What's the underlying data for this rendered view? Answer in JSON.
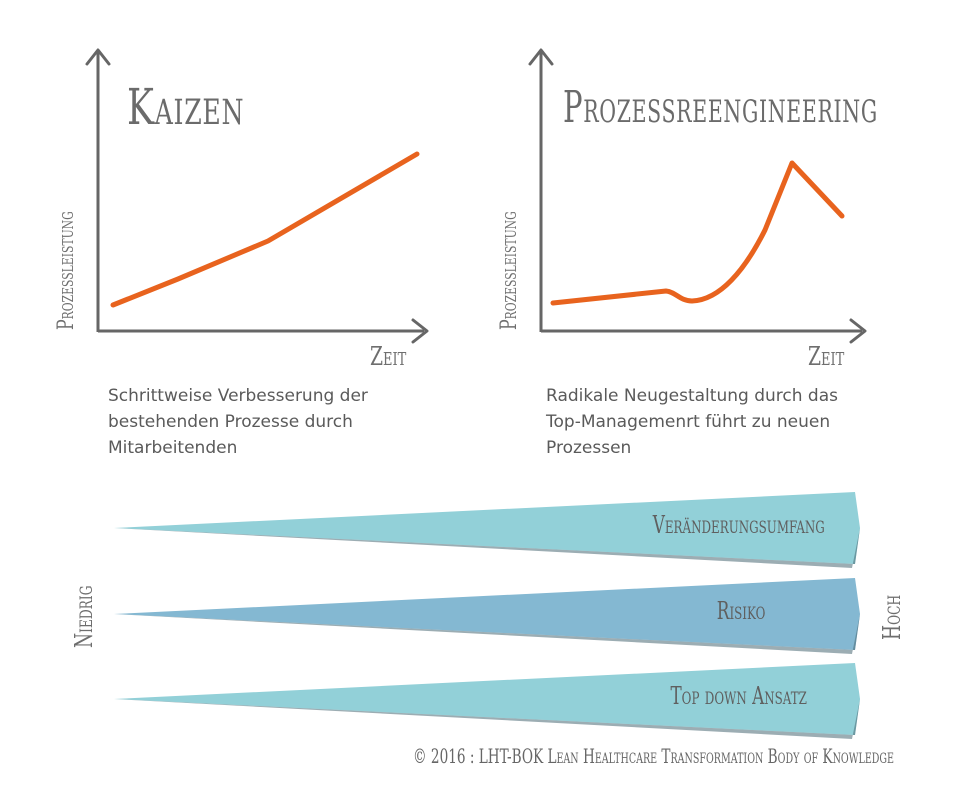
{
  "charts": [
    {
      "title": "Kaizen",
      "ylabel": "Prozessleistung",
      "xlabel": "Zeit",
      "description": "Schrittweise Verbesserung der\nbestehenden Prozesse durch\nMitarbeitenden",
      "line_color": "#e8631e"
    },
    {
      "title": "Prozessreengineering",
      "ylabel": "Prozessleistung",
      "xlabel": "Zeit",
      "description": "Radikale Neugestaltung durch das\nTop-Managemenrt führt zu neuen\nProzessen",
      "line_color": "#e8631e"
    }
  ],
  "scale": {
    "low_label": "Niedrig",
    "high_label": "Hoch"
  },
  "wedges": [
    {
      "label": "Veränderungsumfang",
      "color": "#92d0d8"
    },
    {
      "label": "Risiko",
      "color": "#84b8d2"
    },
    {
      "label": "Top down Ansatz",
      "color": "#92d0d8"
    }
  ],
  "copyright": "© 2016 : LHT-BOK Lean Healthcare Transformation Body of Knowledge",
  "colors": {
    "axis": "#666666",
    "text": "#666666",
    "wedge_dark": "#4a6a74"
  }
}
